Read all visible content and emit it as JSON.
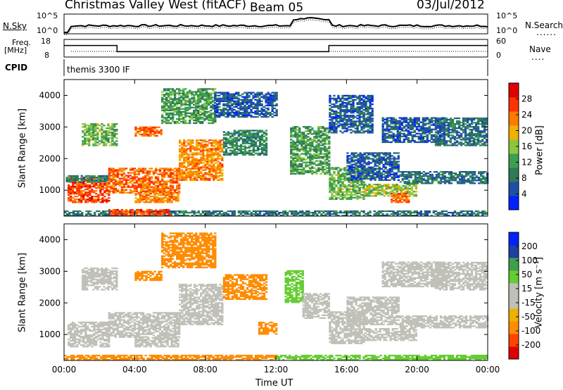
{
  "header": {
    "title": "Christmas Valley West (fitACF)",
    "beam": "Beam 05",
    "date": "03/Jul/2012"
  },
  "noise_panel": {
    "left_label": "N.Sky",
    "right_label": "N.Search",
    "left_ticks": [
      "10^5",
      "10^0"
    ],
    "right_ticks": [
      "10^5",
      "10^0"
    ]
  },
  "freq_panel": {
    "left_label": "Freq.",
    "left_unit": "[MHz]",
    "right_label": "Nave",
    "left_ticks": [
      "18",
      "8"
    ],
    "right_ticks": [
      "60",
      "0"
    ],
    "freq_segments": [
      {
        "start_h": 0.0,
        "end_h": 3.0,
        "mhz": 15.0
      },
      {
        "start_h": 3.0,
        "end_h": 15.0,
        "mhz": 11.0
      },
      {
        "start_h": 15.0,
        "end_h": 24.0,
        "mhz": 15.0
      }
    ]
  },
  "cpid": {
    "label": "CPID",
    "value": "themis 3300 IF"
  },
  "colors": {
    "power_scale": [
      "#0022ff",
      "#1f4fa8",
      "#2e7a5a",
      "#3d9e4f",
      "#8cc63f",
      "#f0b000",
      "#ff7a00",
      "#ff3300",
      "#e00000"
    ],
    "velocity_scale": [
      "#e00000",
      "#ff4400",
      "#ff8c00",
      "#f0b000",
      "#c0c0b8",
      "#c0c0b8",
      "#66cc33",
      "#3f9f4f",
      "#2040a0",
      "#0022ff"
    ]
  },
  "chart_data": [
    {
      "type": "heatmap",
      "quantity": "power",
      "ylabel": "Slant Range [km]",
      "ylim": [
        180,
        4500
      ],
      "yticks": [
        "1000",
        "2000",
        "3000",
        "4000"
      ],
      "xlim": [
        0,
        24
      ],
      "colorbar": {
        "label": "Power [dB]",
        "ticks": [
          "28",
          "24",
          "20",
          "16",
          "12",
          "8",
          "4"
        ]
      },
      "regions": [
        {
          "t0": 0.2,
          "t1": 2.5,
          "r0": 600,
          "r1": 1400,
          "v": 26
        },
        {
          "t0": 2.5,
          "t1": 6.5,
          "r0": 900,
          "r1": 1700,
          "v": 24
        },
        {
          "t0": 6.5,
          "t1": 9.0,
          "r0": 1300,
          "r1": 2600,
          "v": 22
        },
        {
          "t0": 4.0,
          "t1": 6.5,
          "r0": 600,
          "r1": 900,
          "v": 22
        },
        {
          "t0": 4.0,
          "t1": 5.5,
          "r0": 2700,
          "r1": 3000,
          "v": 24
        },
        {
          "t0": 1.0,
          "t1": 3.0,
          "r0": 2400,
          "r1": 3100,
          "v": 14
        },
        {
          "t0": 0.1,
          "t1": 2.5,
          "r0": 1250,
          "r1": 1450,
          "v": 10
        },
        {
          "t0": 5.5,
          "t1": 8.5,
          "r0": 3100,
          "r1": 4200,
          "v": 12
        },
        {
          "t0": 9.0,
          "t1": 11.5,
          "r0": 2100,
          "r1": 2900,
          "v": 10
        },
        {
          "t0": 8.5,
          "t1": 12.0,
          "r0": 3300,
          "r1": 4100,
          "v": 6
        },
        {
          "t0": 12.8,
          "t1": 15.0,
          "r0": 1500,
          "r1": 3000,
          "v": 12
        },
        {
          "t0": 15.0,
          "t1": 17.0,
          "r0": 700,
          "r1": 1700,
          "v": 14
        },
        {
          "t0": 16.0,
          "t1": 19.0,
          "r0": 1300,
          "r1": 2200,
          "v": 6
        },
        {
          "t0": 17.0,
          "t1": 20.0,
          "r0": 800,
          "r1": 1200,
          "v": 16
        },
        {
          "t0": 18.5,
          "t1": 19.5,
          "r0": 600,
          "r1": 900,
          "v": 24
        },
        {
          "t0": 19.0,
          "t1": 24.0,
          "r0": 1200,
          "r1": 1600,
          "v": 8
        },
        {
          "t0": 18.0,
          "t1": 21.5,
          "r0": 2500,
          "r1": 3300,
          "v": 6
        },
        {
          "t0": 21.0,
          "t1": 24.0,
          "r0": 2400,
          "r1": 3300,
          "v": 8
        },
        {
          "t0": 15.0,
          "t1": 17.5,
          "r0": 2800,
          "r1": 4000,
          "v": 6
        },
        {
          "t0": 0.0,
          "t1": 24.0,
          "r0": 180,
          "r1": 350,
          "v": 8
        },
        {
          "t0": 2.5,
          "t1": 6.0,
          "r0": 180,
          "r1": 400,
          "v": 26
        }
      ]
    },
    {
      "type": "heatmap",
      "quantity": "velocity",
      "ylabel": "Slant Range [km]",
      "ylim": [
        180,
        4500
      ],
      "yticks": [
        "1000",
        "2000",
        "3000",
        "4000"
      ],
      "xlim": [
        0,
        24
      ],
      "xticks": [
        "00:00",
        "04:00",
        "08:00",
        "12:00",
        "16:00",
        "20:00",
        "00:00"
      ],
      "xlabel": "Time UT",
      "colorbar": {
        "label": "Velocity [m s⁻¹]",
        "ticks": [
          "200",
          "100",
          "50",
          "15",
          "-15",
          "-50",
          "-100",
          "-200"
        ]
      },
      "regions": [
        {
          "t0": 0.2,
          "t1": 2.5,
          "r0": 600,
          "r1": 1400,
          "v": 0
        },
        {
          "t0": 2.5,
          "t1": 6.5,
          "r0": 900,
          "r1": 1700,
          "v": 0
        },
        {
          "t0": 6.5,
          "t1": 9.0,
          "r0": 1300,
          "r1": 2600,
          "v": 0
        },
        {
          "t0": 4.0,
          "t1": 6.5,
          "r0": 600,
          "r1": 900,
          "v": 0
        },
        {
          "t0": 4.0,
          "t1": 5.5,
          "r0": 2700,
          "r1": 3000,
          "v": -70
        },
        {
          "t0": 1.0,
          "t1": 3.0,
          "r0": 2400,
          "r1": 3100,
          "v": 0
        },
        {
          "t0": 5.5,
          "t1": 8.5,
          "r0": 3100,
          "r1": 4200,
          "v": -60
        },
        {
          "t0": 9.0,
          "t1": 11.5,
          "r0": 2100,
          "r1": 2900,
          "v": -60
        },
        {
          "t0": 11.0,
          "t1": 12.0,
          "r0": 1000,
          "r1": 1400,
          "v": -80
        },
        {
          "t0": 12.5,
          "t1": 13.5,
          "r0": 2000,
          "r1": 3000,
          "v": 40
        },
        {
          "t0": 13.5,
          "t1": 15.0,
          "r0": 1500,
          "r1": 2300,
          "v": 0
        },
        {
          "t0": 15.0,
          "t1": 17.0,
          "r0": 700,
          "r1": 1700,
          "v": 0
        },
        {
          "t0": 16.0,
          "t1": 19.0,
          "r0": 1300,
          "r1": 2200,
          "v": 0
        },
        {
          "t0": 17.0,
          "t1": 20.0,
          "r0": 800,
          "r1": 1200,
          "v": 0
        },
        {
          "t0": 19.0,
          "t1": 24.0,
          "r0": 1200,
          "r1": 1600,
          "v": 0
        },
        {
          "t0": 18.0,
          "t1": 21.5,
          "r0": 2500,
          "r1": 3300,
          "v": 0
        },
        {
          "t0": 21.0,
          "t1": 24.0,
          "r0": 2400,
          "r1": 3300,
          "v": 0
        },
        {
          "t0": 0.0,
          "t1": 12.0,
          "r0": 180,
          "r1": 350,
          "v": -60
        },
        {
          "t0": 12.0,
          "t1": 24.0,
          "r0": 180,
          "r1": 350,
          "v": 40
        }
      ]
    }
  ]
}
